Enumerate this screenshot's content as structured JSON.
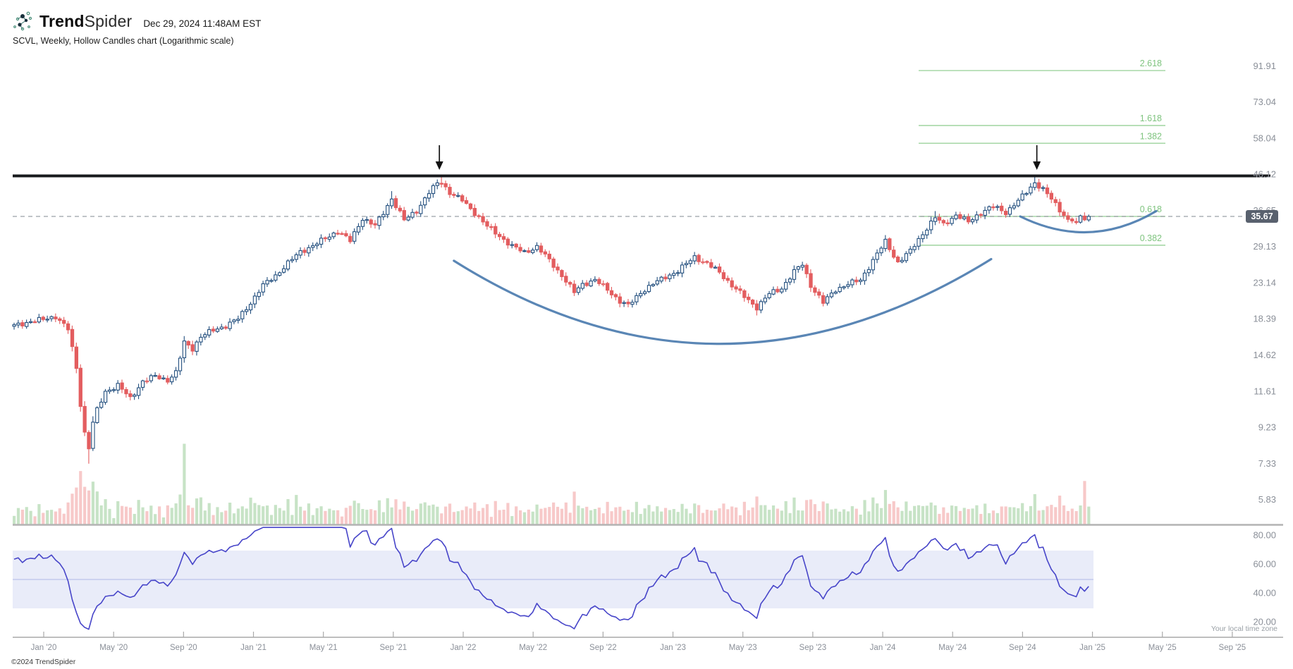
{
  "header": {
    "brand_bold": "Trend",
    "brand_light": "Spider",
    "datetime": "Dec 29, 2024 11:48AM EST",
    "subtitle": "SCVL, Weekly, Hollow Candles chart (Logarithmic scale)"
  },
  "footer": {
    "copyright": "©2024 TrendSpider",
    "timezone_note": "Your local time zone"
  },
  "chart_data": {
    "type": "candlestick",
    "symbol": "SCVL",
    "timeframe": "Weekly",
    "chart_style": "Hollow Candles",
    "scale": "Logarithmic",
    "last_price": 35.67,
    "last_price_label": "35.67",
    "price_axis_ticks": [
      "91.91",
      "73.04",
      "58.04",
      "46.12",
      "36.65",
      "29.13",
      "23.14",
      "18.39",
      "14.62",
      "11.61",
      "9.23",
      "7.33",
      "5.83"
    ],
    "x_axis_labels": [
      "Jan '20",
      "May '20",
      "Sep '20",
      "Jan '21",
      "May '21",
      "Sep '21",
      "Jan '22",
      "May '22",
      "Sep '22",
      "Jan '23",
      "May '23",
      "Sep '23",
      "Jan '24",
      "May '24",
      "Sep '24",
      "Jan '25",
      "May '25",
      "Sep '25"
    ],
    "resistance_level": 46.12,
    "fib_extensions": [
      {
        "label": "2.618",
        "price": 90.2
      },
      {
        "label": "1.618",
        "price": 63.6
      },
      {
        "label": "1.382",
        "price": 56.8
      },
      {
        "label": "0.618",
        "price": 35.67
      },
      {
        "label": "0.382",
        "price": 29.7
      }
    ],
    "oscillator": {
      "axis_ticks": [
        "80.00",
        "60.00",
        "40.00",
        "20.00"
      ],
      "axis_values": [
        80,
        60,
        40,
        20
      ],
      "band": [
        30,
        70
      ],
      "midline": 50,
      "period": 14
    },
    "num_weeks": 260,
    "weekly_close_keyframes": [
      [
        0,
        17.8
      ],
      [
        4,
        18.3
      ],
      [
        7,
        18.5
      ],
      [
        10,
        18.9
      ],
      [
        13,
        17.4
      ],
      [
        15,
        13.6
      ],
      [
        16,
        10.8
      ],
      [
        17,
        9.0
      ],
      [
        18,
        8.2
      ],
      [
        19,
        9.6
      ],
      [
        20,
        10.4
      ],
      [
        22,
        11.7
      ],
      [
        25,
        12.2
      ],
      [
        28,
        11.2
      ],
      [
        31,
        12.5
      ],
      [
        34,
        12.9
      ],
      [
        37,
        12.6
      ],
      [
        39,
        13.2
      ],
      [
        41,
        16.0
      ],
      [
        43,
        15.4
      ],
      [
        45,
        16.6
      ],
      [
        48,
        17.3
      ],
      [
        51,
        17.8
      ],
      [
        54,
        18.6
      ],
      [
        57,
        20.6
      ],
      [
        60,
        23.0
      ],
      [
        63,
        24.5
      ],
      [
        66,
        26.5
      ],
      [
        69,
        28.5
      ],
      [
        72,
        29.6
      ],
      [
        75,
        31.0
      ],
      [
        78,
        32.5
      ],
      [
        81,
        30.5
      ],
      [
        84,
        35.3
      ],
      [
        87,
        33.6
      ],
      [
        89,
        36.5
      ],
      [
        91,
        40.0
      ],
      [
        94,
        34.8
      ],
      [
        97,
        37.0
      ],
      [
        100,
        41.5
      ],
      [
        102,
        44.0
      ],
      [
        103,
        44.3
      ],
      [
        105,
        41.5
      ],
      [
        108,
        39.5
      ],
      [
        111,
        36.5
      ],
      [
        114,
        33.5
      ],
      [
        117,
        31.5
      ],
      [
        120,
        29.5
      ],
      [
        123,
        28.4
      ],
      [
        126,
        29.4
      ],
      [
        129,
        27.0
      ],
      [
        132,
        24.5
      ],
      [
        135,
        22.0
      ],
      [
        137,
        23.2
      ],
      [
        140,
        23.8
      ],
      [
        143,
        22.4
      ],
      [
        146,
        20.8
      ],
      [
        148,
        20.2
      ],
      [
        151,
        22.0
      ],
      [
        154,
        23.2
      ],
      [
        157,
        24.3
      ],
      [
        160,
        25.2
      ],
      [
        164,
        27.6
      ],
      [
        167,
        26.4
      ],
      [
        170,
        25.0
      ],
      [
        173,
        23.0
      ],
      [
        176,
        21.4
      ],
      [
        179,
        20.0
      ],
      [
        182,
        21.8
      ],
      [
        185,
        22.6
      ],
      [
        188,
        25.1
      ],
      [
        190,
        26.3
      ],
      [
        192,
        23.0
      ],
      [
        195,
        20.6
      ],
      [
        198,
        22.4
      ],
      [
        201,
        23.2
      ],
      [
        204,
        23.8
      ],
      [
        207,
        27.0
      ],
      [
        210,
        30.4
      ],
      [
        213,
        26.6
      ],
      [
        216,
        28.6
      ],
      [
        219,
        32.0
      ],
      [
        222,
        35.4
      ],
      [
        224,
        33.9
      ],
      [
        227,
        36.0
      ],
      [
        230,
        34.4
      ],
      [
        233,
        36.6
      ],
      [
        236,
        38.0
      ],
      [
        239,
        36.6
      ],
      [
        242,
        39.4
      ],
      [
        244,
        41.6
      ],
      [
        246,
        44.3
      ],
      [
        248,
        42.4
      ],
      [
        250,
        39.8
      ],
      [
        252,
        37.2
      ],
      [
        254,
        35.0
      ],
      [
        256,
        34.3
      ],
      [
        257,
        35.8
      ],
      [
        258,
        34.9
      ],
      [
        259,
        35.67
      ]
    ],
    "wick_high_overrides": {
      "91": 41.9,
      "103": 46.3,
      "222": 36.9,
      "246": 46.35
    },
    "wick_low_overrides": {
      "18": 7.4,
      "179": 19.0
    },
    "volume_spike_multipliers": {
      "41": 3.0,
      "45": 1.5,
      "57": 1.4,
      "68": 1.5,
      "103": 1.3,
      "135": 1.4,
      "179": 1.3,
      "210": 1.3,
      "246": 1.5,
      "252": 1.4,
      "258": 2.3,
      "259": 1.6
    },
    "annotations": {
      "arrows_at_weeks": [
        102.5,
        246.5
      ],
      "cup": {
        "start": [
          106,
          26.9
        ],
        "control": [
          170,
          9.3
        ],
        "end": [
          235.5,
          27.2
        ]
      },
      "handle": {
        "start": [
          242.5,
          35.67
        ],
        "control": [
          259.3,
          28.7
        ],
        "end": [
          275.3,
          36.9
        ]
      }
    },
    "colors": {
      "candle_up": "#24507f",
      "candle_down": "#e35d5f",
      "volume_up": "#c7e3c6",
      "volume_down": "#f7c9c9",
      "fib_line": "#a6d7a6",
      "fib_text": "#7fc47f",
      "oscillator_line": "#4745c9",
      "band_fill": "#e9ecf9",
      "band_midline": "#bcc3ea",
      "resistance": "#17191c",
      "dashed": "#9aa0a6",
      "arc": "#4879ad",
      "axis_text": "#8a8f98",
      "arrow": "#121212",
      "baseline": "#b3b3b3",
      "badge_bg": "#59616e"
    }
  }
}
